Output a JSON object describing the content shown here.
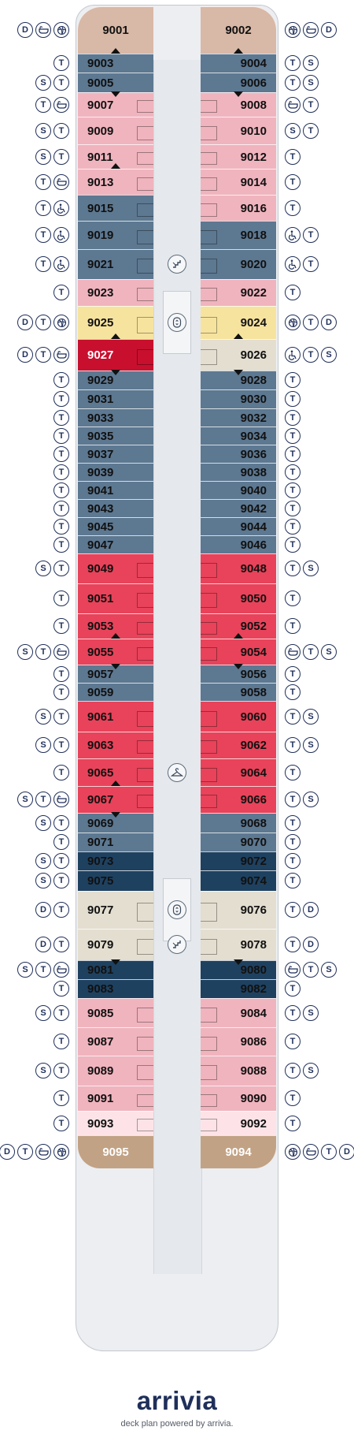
{
  "deck": {
    "cabins": [
      {
        "id": "9001",
        "side": "left",
        "row": 0,
        "color": "#d8b8a6",
        "shape": "fwd"
      },
      {
        "id": "9002",
        "side": "right",
        "row": 0,
        "color": "#d8b8a6",
        "shape": "fwd"
      },
      {
        "id": "9003",
        "side": "left",
        "row": 1,
        "color": "#5d7891",
        "conn": "up"
      },
      {
        "id": "9004",
        "side": "right",
        "row": 1,
        "color": "#5d7891",
        "conn": "up"
      },
      {
        "id": "9005",
        "side": "left",
        "row": 2,
        "color": "#5d7891"
      },
      {
        "id": "9006",
        "side": "right",
        "row": 2,
        "color": "#5d7891"
      },
      {
        "id": "9007",
        "side": "left",
        "row": 3,
        "color": "#f0b4be",
        "conn": "down"
      },
      {
        "id": "9008",
        "side": "right",
        "row": 3,
        "color": "#f0b4be",
        "conn": "down"
      },
      {
        "id": "9009",
        "side": "left",
        "row": 4,
        "color": "#f0b4be"
      },
      {
        "id": "9010",
        "side": "right",
        "row": 4,
        "color": "#f0b4be"
      },
      {
        "id": "9011",
        "side": "left",
        "row": 5,
        "color": "#f0b4be"
      },
      {
        "id": "9012",
        "side": "right",
        "row": 5,
        "color": "#f0b4be"
      },
      {
        "id": "9013",
        "side": "left",
        "row": 6,
        "color": "#f0b4be",
        "conn": "up"
      },
      {
        "id": "9014",
        "side": "right",
        "row": 6,
        "color": "#f0b4be"
      },
      {
        "id": "9015",
        "side": "left",
        "row": 7,
        "color": "#5d7891"
      },
      {
        "id": "9016",
        "side": "right",
        "row": 7,
        "color": "#f0b4be"
      },
      {
        "id": "9019",
        "side": "left",
        "row": 8,
        "color": "#5d7891"
      },
      {
        "id": "9018",
        "side": "right",
        "row": 8,
        "color": "#5d7891"
      },
      {
        "id": "9021",
        "side": "left",
        "row": 9,
        "color": "#5d7891"
      },
      {
        "id": "9020",
        "side": "right",
        "row": 9,
        "color": "#5d7891"
      },
      {
        "id": "9023",
        "side": "left",
        "row": 10,
        "color": "#f0b4be"
      },
      {
        "id": "9022",
        "side": "right",
        "row": 10,
        "color": "#f0b4be"
      },
      {
        "id": "9025",
        "side": "left",
        "row": 11,
        "color": "#f6e39e"
      },
      {
        "id": "9024",
        "side": "right",
        "row": 11,
        "color": "#f6e39e"
      },
      {
        "id": "9027",
        "side": "left",
        "row": 12,
        "color": "#c8102e",
        "text": "#ffffff",
        "conn": "up"
      },
      {
        "id": "9026",
        "side": "right",
        "row": 12,
        "color": "#e3ded0",
        "conn": "up"
      },
      {
        "id": "9029",
        "side": "left",
        "row": 13,
        "color": "#5d7891",
        "conn": "down"
      },
      {
        "id": "9028",
        "side": "right",
        "row": 13,
        "color": "#5d7891",
        "conn": "down"
      },
      {
        "id": "9031",
        "side": "left",
        "row": 14,
        "color": "#5d7891"
      },
      {
        "id": "9030",
        "side": "right",
        "row": 14,
        "color": "#5d7891"
      },
      {
        "id": "9033",
        "side": "left",
        "row": 15,
        "color": "#5d7891"
      },
      {
        "id": "9032",
        "side": "right",
        "row": 15,
        "color": "#5d7891"
      },
      {
        "id": "9035",
        "side": "left",
        "row": 16,
        "color": "#5d7891"
      },
      {
        "id": "9034",
        "side": "right",
        "row": 16,
        "color": "#5d7891"
      },
      {
        "id": "9037",
        "side": "left",
        "row": 17,
        "color": "#5d7891"
      },
      {
        "id": "9036",
        "side": "right",
        "row": 17,
        "color": "#5d7891"
      },
      {
        "id": "9039",
        "side": "left",
        "row": 18,
        "color": "#5d7891"
      },
      {
        "id": "9038",
        "side": "right",
        "row": 18,
        "color": "#5d7891"
      },
      {
        "id": "9041",
        "side": "left",
        "row": 19,
        "color": "#5d7891"
      },
      {
        "id": "9040",
        "side": "right",
        "row": 19,
        "color": "#5d7891"
      },
      {
        "id": "9043",
        "side": "left",
        "row": 20,
        "color": "#5d7891"
      },
      {
        "id": "9042",
        "side": "right",
        "row": 20,
        "color": "#5d7891"
      },
      {
        "id": "9045",
        "side": "left",
        "row": 21,
        "color": "#5d7891"
      },
      {
        "id": "9044",
        "side": "right",
        "row": 21,
        "color": "#5d7891"
      },
      {
        "id": "9047",
        "side": "left",
        "row": 22,
        "color": "#5d7891"
      },
      {
        "id": "9046",
        "side": "right",
        "row": 22,
        "color": "#5d7891"
      },
      {
        "id": "9049",
        "side": "left",
        "row": 23,
        "color": "#e8435a"
      },
      {
        "id": "9048",
        "side": "right",
        "row": 23,
        "color": "#e8435a"
      },
      {
        "id": "9051",
        "side": "left",
        "row": 24,
        "color": "#e8435a"
      },
      {
        "id": "9050",
        "side": "right",
        "row": 24,
        "color": "#e8435a"
      },
      {
        "id": "9053",
        "side": "left",
        "row": 25,
        "color": "#e8435a"
      },
      {
        "id": "9052",
        "side": "right",
        "row": 25,
        "color": "#e8435a"
      },
      {
        "id": "9055",
        "side": "left",
        "row": 26,
        "color": "#e8435a",
        "conn": "up"
      },
      {
        "id": "9054",
        "side": "right",
        "row": 26,
        "color": "#e8435a",
        "conn": "up"
      },
      {
        "id": "9057",
        "side": "left",
        "row": 27,
        "color": "#5d7891",
        "conn": "down"
      },
      {
        "id": "9056",
        "side": "right",
        "row": 27,
        "color": "#5d7891",
        "conn": "down"
      },
      {
        "id": "9059",
        "side": "left",
        "row": 28,
        "color": "#5d7891"
      },
      {
        "id": "9058",
        "side": "right",
        "row": 28,
        "color": "#5d7891"
      },
      {
        "id": "9061",
        "side": "left",
        "row": 29,
        "color": "#e8435a"
      },
      {
        "id": "9060",
        "side": "right",
        "row": 29,
        "color": "#e8435a"
      },
      {
        "id": "9063",
        "side": "left",
        "row": 30,
        "color": "#e8435a"
      },
      {
        "id": "9062",
        "side": "right",
        "row": 30,
        "color": "#e8435a"
      },
      {
        "id": "9065",
        "side": "left",
        "row": 31,
        "color": "#e8435a"
      },
      {
        "id": "9064",
        "side": "right",
        "row": 31,
        "color": "#e8435a"
      },
      {
        "id": "9067",
        "side": "left",
        "row": 32,
        "color": "#e8435a",
        "conn": "up"
      },
      {
        "id": "9066",
        "side": "right",
        "row": 32,
        "color": "#e8435a"
      },
      {
        "id": "9069",
        "side": "left",
        "row": 33,
        "color": "#5d7891",
        "conn": "down"
      },
      {
        "id": "9068",
        "side": "right",
        "row": 33,
        "color": "#5d7891"
      },
      {
        "id": "9071",
        "side": "left",
        "row": 34,
        "color": "#5d7891"
      },
      {
        "id": "9070",
        "side": "right",
        "row": 34,
        "color": "#5d7891"
      },
      {
        "id": "9073",
        "side": "left",
        "row": 35,
        "color": "#1f4160"
      },
      {
        "id": "9072",
        "side": "right",
        "row": 35,
        "color": "#1f4160"
      },
      {
        "id": "9075",
        "side": "left",
        "row": 36,
        "color": "#1f4160"
      },
      {
        "id": "9074",
        "side": "right",
        "row": 36,
        "color": "#1f4160"
      },
      {
        "id": "9077",
        "side": "left",
        "row": 37,
        "color": "#e3ded0"
      },
      {
        "id": "9076",
        "side": "right",
        "row": 37,
        "color": "#e3ded0"
      },
      {
        "id": "9079",
        "side": "left",
        "row": 38,
        "color": "#e3ded0"
      },
      {
        "id": "9078",
        "side": "right",
        "row": 38,
        "color": "#e3ded0"
      },
      {
        "id": "9081",
        "side": "left",
        "row": 39,
        "color": "#1f4160",
        "conn": "down"
      },
      {
        "id": "9080",
        "side": "right",
        "row": 39,
        "color": "#1f4160",
        "conn": "down"
      },
      {
        "id": "9083",
        "side": "left",
        "row": 40,
        "color": "#1f4160"
      },
      {
        "id": "9082",
        "side": "right",
        "row": 40,
        "color": "#1f4160"
      },
      {
        "id": "9085",
        "side": "left",
        "row": 41,
        "color": "#f0b4be"
      },
      {
        "id": "9084",
        "side": "right",
        "row": 41,
        "color": "#f0b4be"
      },
      {
        "id": "9087",
        "side": "left",
        "row": 42,
        "color": "#f0b4be"
      },
      {
        "id": "9086",
        "side": "right",
        "row": 42,
        "color": "#f0b4be"
      },
      {
        "id": "9089",
        "side": "left",
        "row": 43,
        "color": "#f0b4be"
      },
      {
        "id": "9088",
        "side": "right",
        "row": 43,
        "color": "#f0b4be"
      },
      {
        "id": "9091",
        "side": "left",
        "row": 44,
        "color": "#f0b4be"
      },
      {
        "id": "9090",
        "side": "right",
        "row": 44,
        "color": "#f0b4be"
      },
      {
        "id": "9093",
        "side": "left",
        "row": 45,
        "color": "#fde3e7"
      },
      {
        "id": "9092",
        "side": "right",
        "row": 45,
        "color": "#fde3e7"
      },
      {
        "id": "9095",
        "side": "left",
        "row": 46,
        "color": "#c2a284",
        "text": "#ffffff",
        "shape": "aft"
      },
      {
        "id": "9094",
        "side": "right",
        "row": 46,
        "color": "#c2a284",
        "text": "#ffffff",
        "shape": "aft"
      }
    ],
    "symbols": [
      {
        "row": 0,
        "left": [
          "D",
          "bathtub",
          "spa"
        ],
        "right": [
          "spa",
          "bathtub",
          "D"
        ]
      },
      {
        "row": 1,
        "left": [
          "T"
        ],
        "right": [
          "T",
          "S"
        ]
      },
      {
        "row": 2,
        "left": [
          "S",
          "T"
        ],
        "right": [
          "T",
          "S"
        ]
      },
      {
        "row": 3,
        "left": [
          "T",
          "bathtub"
        ],
        "right": [
          "bathtub",
          "T"
        ]
      },
      {
        "row": 4,
        "left": [
          "S",
          "T"
        ],
        "right": [
          "S",
          "T"
        ]
      },
      {
        "row": 5,
        "left": [
          "S",
          "T"
        ],
        "right": [
          "T"
        ]
      },
      {
        "row": 6,
        "left": [
          "T",
          "bathtub"
        ],
        "right": [
          "T"
        ]
      },
      {
        "row": 7,
        "left": [
          "T",
          "accessible"
        ],
        "right": [
          "T"
        ]
      },
      {
        "row": 8,
        "left": [
          "T",
          "accessible"
        ],
        "right": [
          "accessible",
          "T"
        ]
      },
      {
        "row": 9,
        "left": [
          "T",
          "accessible"
        ],
        "right": [
          "accessible",
          "T"
        ]
      },
      {
        "row": 10,
        "left": [
          "T"
        ],
        "right": [
          "T"
        ]
      },
      {
        "row": 11,
        "left": [
          "D",
          "T",
          "spa"
        ],
        "right": [
          "spa",
          "T",
          "D"
        ]
      },
      {
        "row": 12,
        "left": [
          "D",
          "T",
          "bathtub"
        ],
        "right": [
          "accessible",
          "T",
          "S"
        ]
      },
      {
        "row": 13,
        "left": [
          "T"
        ],
        "right": [
          "T"
        ]
      },
      {
        "row": 14,
        "left": [
          "T"
        ],
        "right": [
          "T"
        ]
      },
      {
        "row": 15,
        "left": [
          "T"
        ],
        "right": [
          "T"
        ]
      },
      {
        "row": 16,
        "left": [
          "T"
        ],
        "right": [
          "T"
        ]
      },
      {
        "row": 17,
        "left": [
          "T"
        ],
        "right": [
          "T"
        ]
      },
      {
        "row": 18,
        "left": [
          "T"
        ],
        "right": [
          "T"
        ]
      },
      {
        "row": 19,
        "left": [
          "T"
        ],
        "right": [
          "T"
        ]
      },
      {
        "row": 20,
        "left": [
          "T"
        ],
        "right": [
          "T"
        ]
      },
      {
        "row": 21,
        "left": [
          "T"
        ],
        "right": [
          "T"
        ]
      },
      {
        "row": 22,
        "left": [
          "T"
        ],
        "right": [
          "T"
        ]
      },
      {
        "row": 23,
        "left": [
          "S",
          "T"
        ],
        "right": [
          "T",
          "S"
        ]
      },
      {
        "row": 24,
        "left": [
          "T"
        ],
        "right": [
          "T"
        ]
      },
      {
        "row": 25,
        "left": [
          "T"
        ],
        "right": [
          "T"
        ]
      },
      {
        "row": 26,
        "left": [
          "S",
          "T",
          "bathtub"
        ],
        "right": [
          "bathtub",
          "T",
          "S"
        ]
      },
      {
        "row": 27,
        "left": [
          "T"
        ],
        "right": [
          "T"
        ]
      },
      {
        "row": 28,
        "left": [
          "T"
        ],
        "right": [
          "T"
        ]
      },
      {
        "row": 29,
        "left": [
          "S",
          "T"
        ],
        "right": [
          "T",
          "S"
        ]
      },
      {
        "row": 30,
        "left": [
          "S",
          "T"
        ],
        "right": [
          "T",
          "S"
        ]
      },
      {
        "row": 31,
        "left": [
          "T"
        ],
        "right": [
          "T"
        ]
      },
      {
        "row": 32,
        "left": [
          "S",
          "T",
          "bathtub"
        ],
        "right": [
          "T",
          "S"
        ]
      },
      {
        "row": 33,
        "left": [
          "S",
          "T"
        ],
        "right": [
          "T"
        ]
      },
      {
        "row": 34,
        "left": [
          "T"
        ],
        "right": [
          "T"
        ]
      },
      {
        "row": 35,
        "left": [
          "S",
          "T"
        ],
        "right": [
          "T"
        ]
      },
      {
        "row": 36,
        "left": [
          "S",
          "T"
        ],
        "right": [
          "T"
        ]
      },
      {
        "row": 37,
        "left": [
          "D",
          "T"
        ],
        "right": [
          "T",
          "D"
        ]
      },
      {
        "row": 38,
        "left": [
          "D",
          "T"
        ],
        "right": [
          "T",
          "D"
        ]
      },
      {
        "row": 39,
        "left": [
          "S",
          "T",
          "bathtub"
        ],
        "right": [
          "bathtub",
          "T",
          "S"
        ]
      },
      {
        "row": 40,
        "left": [
          "T"
        ],
        "right": [
          "T"
        ]
      },
      {
        "row": 41,
        "left": [
          "S",
          "T"
        ],
        "right": [
          "T",
          "S"
        ]
      },
      {
        "row": 42,
        "left": [
          "T"
        ],
        "right": [
          "T"
        ]
      },
      {
        "row": 43,
        "left": [
          "S",
          "T"
        ],
        "right": [
          "T",
          "S"
        ]
      },
      {
        "row": 44,
        "left": [
          "T"
        ],
        "right": [
          "T"
        ]
      },
      {
        "row": 45,
        "left": [
          "T"
        ],
        "right": [
          "T"
        ]
      },
      {
        "row": 46,
        "left": [
          "D",
          "T",
          "bathtub",
          "spa"
        ],
        "right": [
          "spa",
          "bathtub",
          "T",
          "D"
        ]
      }
    ],
    "facilities": [
      {
        "kind": "stairs",
        "row": 9
      },
      {
        "kind": "elevator",
        "row": 11
      },
      {
        "kind": "hanger",
        "row": 31
      },
      {
        "kind": "elevator",
        "row": 37
      },
      {
        "kind": "stairs",
        "row": 38
      }
    ]
  },
  "colors": {
    "symbol_ink": "#1f2f5a",
    "hull_fill": "#eceef1",
    "brand_accent": "#1aa3a3"
  },
  "footer": {
    "brand": "arrivia",
    "tagline": "deck plan powered by arrivia."
  }
}
